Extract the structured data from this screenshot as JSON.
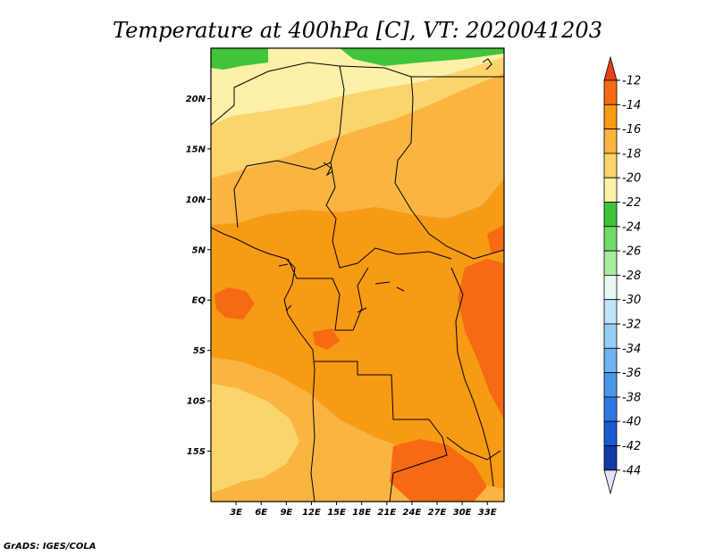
{
  "title": "Temperature at 400hPa [C], VT: 2020041203",
  "credit": "GrADS: IGES/COLA",
  "map": {
    "lat_range": [
      -20,
      25
    ],
    "lon_range": [
      0,
      35
    ],
    "lat_ticks": [
      "20N",
      "15N",
      "10N",
      "5N",
      "EQ",
      "5S",
      "10S",
      "15S"
    ],
    "lon_ticks": [
      "3E",
      "6E",
      "9E",
      "12E",
      "15E",
      "18E",
      "21E",
      "24E",
      "27E",
      "30E",
      "33E"
    ]
  },
  "colorbar": {
    "labels": [
      "-12",
      "-14",
      "-16",
      "-18",
      "-20",
      "-22",
      "-24",
      "-26",
      "-28",
      "-30",
      "-32",
      "-34",
      "-36",
      "-38",
      "-40",
      "-42",
      "-44"
    ],
    "colors": {
      "gt_-12": "#e8401c",
      "-14_-12": "#f56a12",
      "-16_-14": "#f79a14",
      "-18_-16": "#f9b442",
      "-20_-18": "#fbd46c",
      "-22_-20": "#fdf0a8",
      "-24_-22": "#3fc43a",
      "-26_-24": "#72dc66",
      "-28_-26": "#a8ea9e",
      "-30_-28": "#e8f8f4",
      "-32_-30": "#c0e4fa",
      "-34_-32": "#98cef4",
      "-36_-34": "#6eb4ee",
      "-38_-36": "#4a96ea",
      "-40_-38": "#2e78e2",
      "-42_-40": "#1c5ad0",
      "-44_-42": "#1438a8",
      "lt_-44": "#0c1270",
      "below": "#e6e0f8"
    }
  }
}
